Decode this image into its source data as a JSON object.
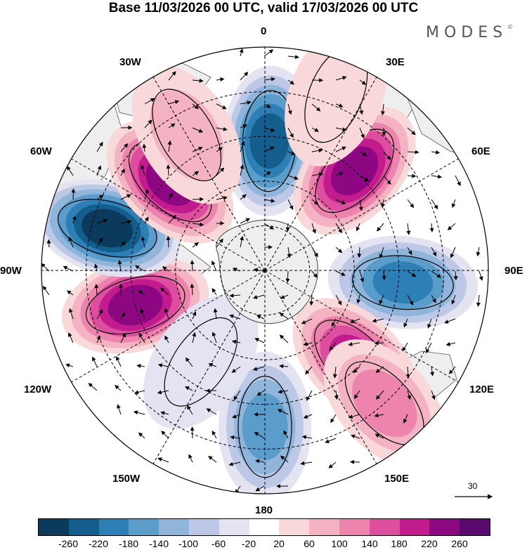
{
  "title": "Base 11/03/2026 00 UTC, valid 17/03/2026 00 UTC",
  "brand": "MODES",
  "brand_mark": "©",
  "longitude_labels": {
    "lon_0": "0",
    "lon_30e": "30E",
    "lon_60e": "60E",
    "lon_90e": "90E",
    "lon_120e": "120E",
    "lon_150e": "150E",
    "lon_180": "180",
    "lon_150w": "150W",
    "lon_120w": "120W",
    "lon_90w": "90W",
    "lon_60w": "60W",
    "lon_30w": "30W"
  },
  "vector_reference": {
    "label": "30",
    "value": 30
  },
  "colorbar": {
    "colors": [
      "#0b3a5c",
      "#135e8d",
      "#2f7fb7",
      "#5a9cca",
      "#8fb5db",
      "#bcc8e6",
      "#e3e3f1",
      "#ffffff",
      "#f8d8d9",
      "#f4b3c2",
      "#ec84ae",
      "#dd4e9f",
      "#c11b8d",
      "#8d0782",
      "#5a0a6e"
    ],
    "ticks": [
      "-260",
      "-220",
      "-180",
      "-140",
      "-100",
      "-60",
      "-20",
      "20",
      "60",
      "100",
      "140",
      "180",
      "220",
      "260"
    ]
  },
  "anomaly_centers": [
    {
      "sign": "negative",
      "bearing_deg": 2,
      "range": 0.58,
      "value": -230
    },
    {
      "sign": "positive",
      "bearing_deg": 42,
      "range": 0.6,
      "value": 230
    },
    {
      "sign": "negative",
      "bearing_deg": 95,
      "range": 0.62,
      "value": -190
    },
    {
      "sign": "positive",
      "bearing_deg": 135,
      "range": 0.57,
      "value": 180
    },
    {
      "sign": "positive",
      "bearing_deg": 138,
      "range": 0.8,
      "value": 120
    },
    {
      "sign": "negative",
      "bearing_deg": 180,
      "range": 0.7,
      "value": -150
    },
    {
      "sign": "positive",
      "bearing_deg": 255,
      "range": 0.6,
      "value": 250
    },
    {
      "sign": "negative",
      "bearing_deg": 285,
      "range": 0.73,
      "value": -260
    },
    {
      "sign": "positive",
      "bearing_deg": 313,
      "range": 0.58,
      "value": 230
    },
    {
      "sign": "positive",
      "bearing_deg": 330,
      "range": 0.7,
      "value": 60
    },
    {
      "sign": "positive",
      "bearing_deg": 22,
      "range": 0.85,
      "value": 50
    },
    {
      "sign": "negative",
      "bearing_deg": 215,
      "range": 0.5,
      "value": -40
    }
  ]
}
